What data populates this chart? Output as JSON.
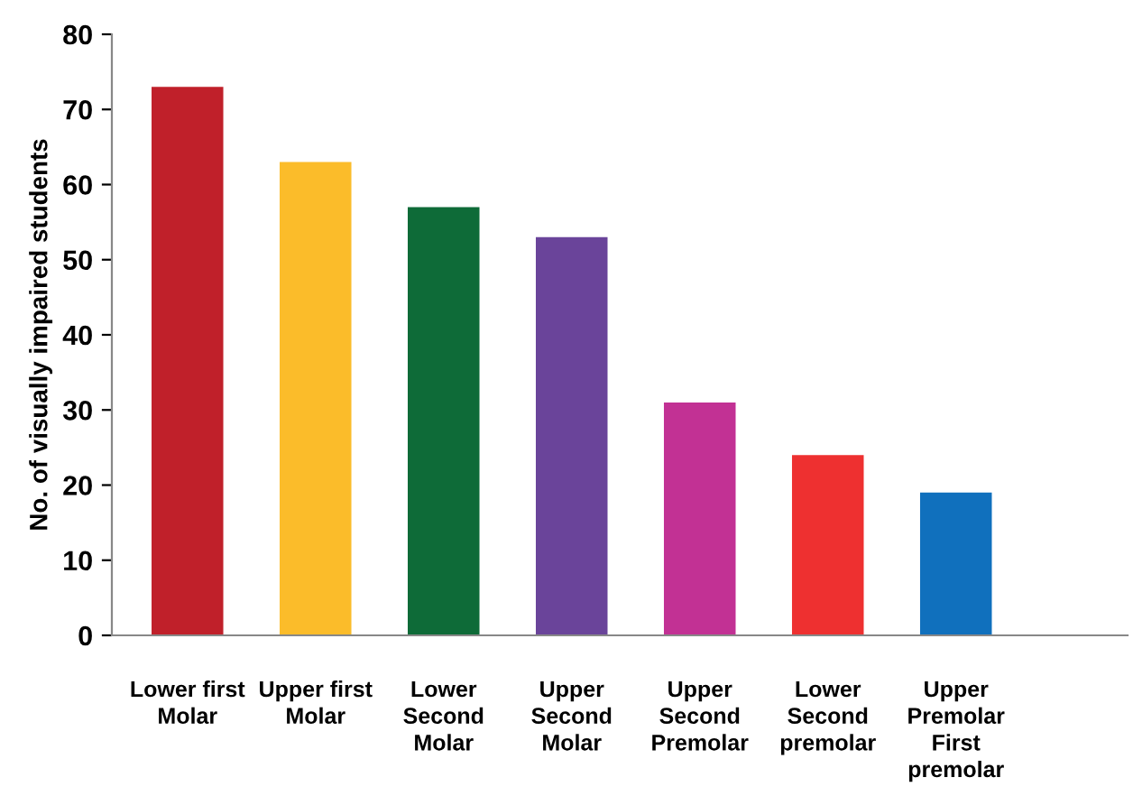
{
  "chart_data": {
    "type": "bar",
    "ylabel": "No. of visually impaired students",
    "categories": [
      "Lower first\nMolar",
      "Upper first\nMolar",
      "Lower\nSecond\nMolar",
      "Upper\nSecond\nMolar",
      "Upper\nSecond\nPremolar",
      "Lower\nSecond\npremolar",
      "Upper\nPremolar\nFirst\npremolar"
    ],
    "values": [
      73,
      63,
      57,
      53,
      31,
      24,
      19
    ],
    "colors": [
      "#c0202a",
      "#fbbc2a",
      "#0e6b38",
      "#6a449a",
      "#c23194",
      "#ee3030",
      "#1070bd"
    ],
    "ylim": [
      0,
      80
    ],
    "yticks": [
      0,
      10,
      20,
      30,
      40,
      50,
      60,
      70,
      80
    ],
    "grid": false,
    "legend": false
  }
}
